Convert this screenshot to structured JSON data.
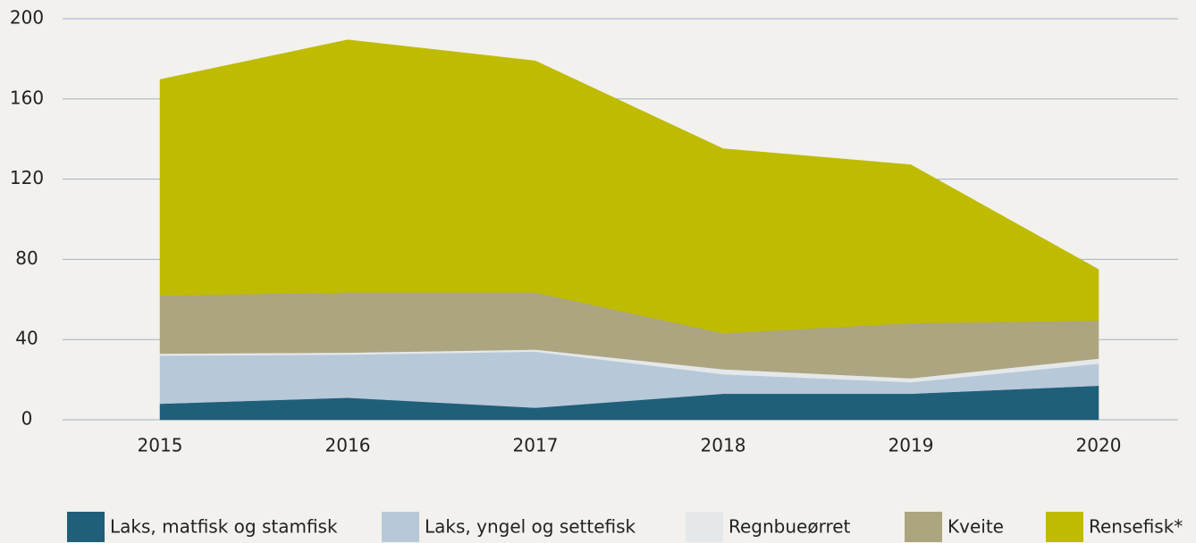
{
  "chart_data": {
    "type": "stacked_area",
    "categories": [
      "2015",
      "2016",
      "2017",
      "2018",
      "2019",
      "2020"
    ],
    "series": [
      {
        "name": "Laks, matfisk og stamfisk",
        "color": "#1f5f7a",
        "values": [
          8,
          11,
          6,
          13,
          13,
          17
        ]
      },
      {
        "name": "Laks, yngel og settefisk",
        "color": "#b7c8d8",
        "values": [
          24,
          21.5,
          28,
          9.7,
          5.7,
          11
        ]
      },
      {
        "name": "Regnbueørret",
        "color": "#e4e8ea",
        "values": [
          1,
          1,
          1,
          2.5,
          2,
          2.5
        ]
      },
      {
        "name": "Kveite",
        "color": "#aca580",
        "values": [
          29,
          30,
          28.5,
          18,
          27.5,
          19
        ]
      },
      {
        "name": "Rensefisk*",
        "color": "#bfbb00",
        "values": [
          107.7,
          126,
          115.5,
          92,
          79,
          25.5
        ]
      }
    ],
    "ylim": [
      0,
      200
    ],
    "yticks": [
      0,
      40,
      80,
      120,
      160,
      200
    ],
    "grid": true
  }
}
